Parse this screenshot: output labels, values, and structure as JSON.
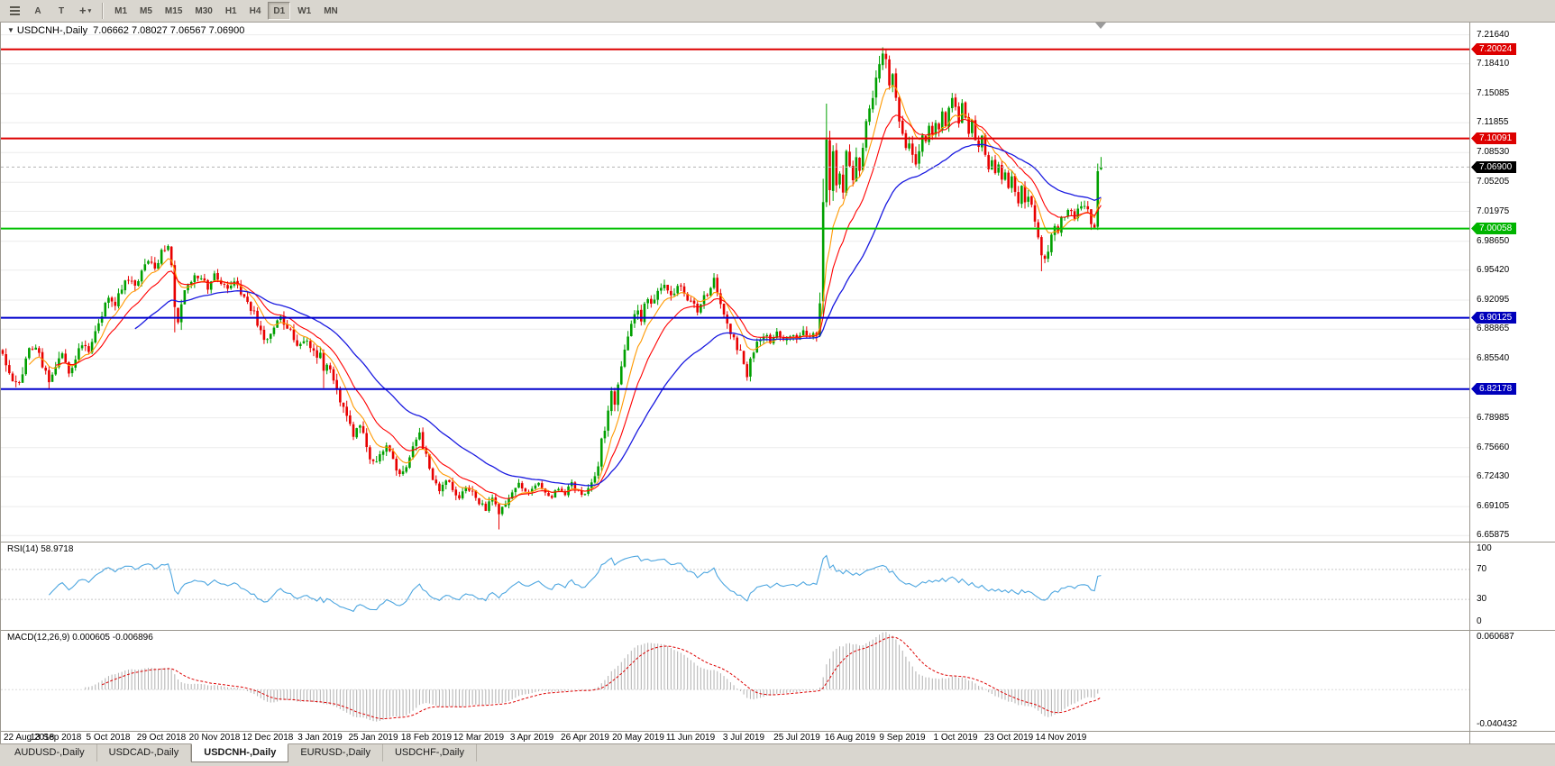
{
  "toolbar": {
    "a_label": "A",
    "t_label": "T",
    "crosshair_glyph": "+",
    "dropdown_glyph": "▾",
    "timeframes": [
      "M1",
      "M5",
      "M15",
      "M30",
      "H1",
      "H4",
      "D1",
      "W1",
      "MN"
    ],
    "active_timeframe": "D1"
  },
  "chart_header": {
    "collapse_icon": "▼",
    "title": "USDCNH-,Daily",
    "ohlc": "7.06662 7.08027 7.06567 7.06900"
  },
  "price_scale": {
    "labels": [
      "7.21640",
      "7.18410",
      "7.15085",
      "7.11855",
      "7.08530",
      "7.05205",
      "7.01975",
      "6.98650",
      "6.95420",
      "6.92095",
      "6.88865",
      "6.85540",
      "6.82215",
      "6.78985",
      "6.75660",
      "6.72430",
      "6.69105",
      "6.65875"
    ]
  },
  "hlines": [
    {
      "price": 7.20024,
      "label": "7.20024",
      "color": "#dd0000",
      "tag_bg": "#dd0000",
      "width": 2,
      "style": "solid"
    },
    {
      "price": 7.10091,
      "label": "7.10091",
      "color": "#dd0000",
      "tag_bg": "#dd0000",
      "width": 2,
      "style": "solid"
    },
    {
      "price": 7.069,
      "label": "7.06900",
      "color": "#b4b4b4",
      "tag_bg": "#000000",
      "width": 1,
      "style": "dotted"
    },
    {
      "price": 7.00058,
      "label": "7.00058",
      "color": "#00c000",
      "tag_bg": "#00b400",
      "width": 2,
      "style": "solid"
    },
    {
      "price": 6.90125,
      "label": "6.90125",
      "color": "#0000cc",
      "tag_bg": "#0000bb",
      "width": 2,
      "style": "solid"
    },
    {
      "price": 6.82178,
      "label": "6.82178",
      "color": "#0000cc",
      "tag_bg": "#0000bb",
      "width": 2,
      "style": "solid"
    }
  ],
  "chart_data": {
    "type": "candlestick",
    "symbol": "USDCNH-",
    "period": "Daily",
    "candle_count": 333,
    "ylim": [
      6.652,
      7.23
    ],
    "colors": {
      "up": "#00a000",
      "down": "#e80000",
      "ma_fast": "#ff9900",
      "ma_mid": "#ff0000",
      "ma_slow": "#1a1ae0"
    },
    "close_waypoints": [
      [
        0,
        6.862
      ],
      [
        2,
        6.845
      ],
      [
        4,
        6.826
      ],
      [
        6,
        6.842
      ],
      [
        8,
        6.866
      ],
      [
        10,
        6.873
      ],
      [
        12,
        6.851
      ],
      [
        14,
        6.834
      ],
      [
        16,
        6.846
      ],
      [
        18,
        6.859
      ],
      [
        20,
        6.843
      ],
      [
        22,
        6.856
      ],
      [
        24,
        6.871
      ],
      [
        26,
        6.86
      ],
      [
        28,
        6.887
      ],
      [
        30,
        6.906
      ],
      [
        32,
        6.922
      ],
      [
        34,
        6.916
      ],
      [
        36,
        6.933
      ],
      [
        38,
        6.945
      ],
      [
        40,
        6.939
      ],
      [
        42,
        6.953
      ],
      [
        44,
        6.963
      ],
      [
        46,
        6.956
      ],
      [
        48,
        6.973
      ],
      [
        50,
        6.979
      ],
      [
        51,
        6.958
      ],
      [
        52,
        6.91
      ],
      [
        53,
        6.895
      ],
      [
        54,
        6.916
      ],
      [
        56,
        6.939
      ],
      [
        58,
        6.951
      ],
      [
        60,
        6.943
      ],
      [
        62,
        6.936
      ],
      [
        64,
        6.949
      ],
      [
        66,
        6.941
      ],
      [
        68,
        6.933
      ],
      [
        70,
        6.941
      ],
      [
        72,
        6.929
      ],
      [
        74,
        6.916
      ],
      [
        76,
        6.906
      ],
      [
        78,
        6.884
      ],
      [
        80,
        6.876
      ],
      [
        82,
        6.889
      ],
      [
        84,
        6.901
      ],
      [
        86,
        6.893
      ],
      [
        88,
        6.879
      ],
      [
        90,
        6.869
      ],
      [
        92,
        6.876
      ],
      [
        94,
        6.863
      ],
      [
        96,
        6.859
      ],
      [
        97,
        6.842
      ],
      [
        98,
        6.853
      ],
      [
        100,
        6.833
      ],
      [
        102,
        6.811
      ],
      [
        104,
        6.789
      ],
      [
        106,
        6.771
      ],
      [
        108,
        6.783
      ],
      [
        110,
        6.757
      ],
      [
        112,
        6.739
      ],
      [
        114,
        6.749
      ],
      [
        116,
        6.761
      ],
      [
        118,
        6.743
      ],
      [
        120,
        6.727
      ],
      [
        122,
        6.739
      ],
      [
        124,
        6.756
      ],
      [
        126,
        6.771
      ],
      [
        128,
        6.746
      ],
      [
        130,
        6.723
      ],
      [
        132,
        6.706
      ],
      [
        134,
        6.719
      ],
      [
        136,
        6.711
      ],
      [
        138,
        6.699
      ],
      [
        140,
        6.713
      ],
      [
        142,
        6.706
      ],
      [
        144,
        6.696
      ],
      [
        146,
        6.689
      ],
      [
        148,
        6.701
      ],
      [
        150,
        6.683
      ],
      [
        152,
        6.696
      ],
      [
        154,
        6.709
      ],
      [
        156,
        6.716
      ],
      [
        158,
        6.705
      ],
      [
        160,
        6.713
      ],
      [
        162,
        6.719
      ],
      [
        164,
        6.709
      ],
      [
        166,
        6.701
      ],
      [
        168,
        6.713
      ],
      [
        170,
        6.706
      ],
      [
        172,
        6.716
      ],
      [
        174,
        6.709
      ],
      [
        176,
        6.703
      ],
      [
        178,
        6.716
      ],
      [
        180,
        6.737
      ],
      [
        181,
        6.763
      ],
      [
        182,
        6.779
      ],
      [
        183,
        6.801
      ],
      [
        184,
        6.819
      ],
      [
        185,
        6.809
      ],
      [
        186,
        6.829
      ],
      [
        187,
        6.846
      ],
      [
        188,
        6.863
      ],
      [
        189,
        6.879
      ],
      [
        190,
        6.891
      ],
      [
        191,
        6.906
      ],
      [
        192,
        6.913
      ],
      [
        193,
        6.901
      ],
      [
        194,
        6.916
      ],
      [
        195,
        6.923
      ],
      [
        196,
        6.916
      ],
      [
        198,
        6.929
      ],
      [
        200,
        6.936
      ],
      [
        202,
        6.923
      ],
      [
        204,
        6.939
      ],
      [
        206,
        6.929
      ],
      [
        208,
        6.919
      ],
      [
        210,
        6.909
      ],
      [
        212,
        6.923
      ],
      [
        214,
        6.936
      ],
      [
        215,
        6.946
      ],
      [
        216,
        6.929
      ],
      [
        218,
        6.906
      ],
      [
        220,
        6.883
      ],
      [
        222,
        6.869
      ],
      [
        224,
        6.853
      ],
      [
        225,
        6.839
      ],
      [
        226,
        6.856
      ],
      [
        228,
        6.873
      ],
      [
        230,
        6.881
      ],
      [
        232,
        6.876
      ],
      [
        234,
        6.883
      ],
      [
        236,
        6.876
      ],
      [
        238,
        6.881
      ],
      [
        240,
        6.879
      ],
      [
        242,
        6.886
      ],
      [
        244,
        6.881
      ],
      [
        246,
        6.889
      ],
      [
        247,
        6.926
      ],
      [
        248,
        7.036
      ],
      [
        249,
        7.106
      ],
      [
        250,
        7.046
      ],
      [
        251,
        7.086
      ],
      [
        252,
        7.043
      ],
      [
        253,
        7.069
      ],
      [
        254,
        7.049
      ],
      [
        255,
        7.083
      ],
      [
        256,
        7.066
      ],
      [
        257,
        7.049
      ],
      [
        258,
        7.076
      ],
      [
        259,
        7.063
      ],
      [
        260,
        7.096
      ],
      [
        261,
        7.116
      ],
      [
        262,
        7.133
      ],
      [
        263,
        7.149
      ],
      [
        264,
        7.163
      ],
      [
        265,
        7.179
      ],
      [
        266,
        7.196
      ],
      [
        267,
        7.186
      ],
      [
        268,
        7.156
      ],
      [
        269,
        7.169
      ],
      [
        270,
        7.143
      ],
      [
        271,
        7.119
      ],
      [
        272,
        7.109
      ],
      [
        273,
        7.086
      ],
      [
        274,
        7.099
      ],
      [
        275,
        7.083
      ],
      [
        276,
        7.069
      ],
      [
        277,
        7.089
      ],
      [
        278,
        7.103
      ],
      [
        279,
        7.096
      ],
      [
        280,
        7.113
      ],
      [
        281,
        7.106
      ],
      [
        282,
        7.119
      ],
      [
        283,
        7.111
      ],
      [
        284,
        7.126
      ],
      [
        285,
        7.119
      ],
      [
        286,
        7.136
      ],
      [
        287,
        7.149
      ],
      [
        288,
        7.136
      ],
      [
        289,
        7.121
      ],
      [
        290,
        7.136
      ],
      [
        291,
        7.126
      ],
      [
        292,
        7.109
      ],
      [
        293,
        7.119
      ],
      [
        294,
        7.099
      ],
      [
        295,
        7.089
      ],
      [
        296,
        7.103
      ],
      [
        297,
        7.086
      ],
      [
        298,
        7.069
      ],
      [
        299,
        7.079
      ],
      [
        300,
        7.063
      ],
      [
        301,
        7.073
      ],
      [
        302,
        7.056
      ],
      [
        303,
        7.066
      ],
      [
        304,
        7.049
      ],
      [
        305,
        7.059
      ],
      [
        306,
        7.043
      ],
      [
        307,
        7.033
      ],
      [
        308,
        7.046
      ],
      [
        309,
        7.029
      ],
      [
        310,
        7.039
      ],
      [
        311,
        7.023
      ],
      [
        312,
        7.006
      ],
      [
        313,
        6.989
      ],
      [
        314,
        6.973
      ],
      [
        315,
        6.963
      ],
      [
        316,
        6.979
      ],
      [
        317,
        6.993
      ],
      [
        318,
        7.006
      ],
      [
        319,
        6.999
      ],
      [
        320,
        7.013
      ],
      [
        322,
        7.02
      ],
      [
        324,
        7.015
      ],
      [
        326,
        7.024
      ],
      [
        328,
        7.02
      ],
      [
        329,
        7.008
      ],
      [
        330,
        7.003
      ],
      [
        331,
        7.064
      ],
      [
        332,
        7.067
      ]
    ],
    "vol_waypoints": [
      [
        0,
        0.013
      ],
      [
        16,
        0.011
      ],
      [
        32,
        0.009
      ],
      [
        48,
        0.01
      ],
      [
        53,
        0.013
      ],
      [
        60,
        0.008
      ],
      [
        80,
        0.008
      ],
      [
        96,
        0.01
      ],
      [
        112,
        0.01
      ],
      [
        128,
        0.009
      ],
      [
        144,
        0.008
      ],
      [
        160,
        0.006
      ],
      [
        176,
        0.006
      ],
      [
        184,
        0.012
      ],
      [
        192,
        0.01
      ],
      [
        208,
        0.008
      ],
      [
        224,
        0.009
      ],
      [
        244,
        0.007
      ],
      [
        248,
        0.03
      ],
      [
        252,
        0.022
      ],
      [
        258,
        0.016
      ],
      [
        266,
        0.015
      ],
      [
        272,
        0.014
      ],
      [
        288,
        0.011
      ],
      [
        304,
        0.009
      ],
      [
        314,
        0.012
      ],
      [
        324,
        0.008
      ],
      [
        332,
        0.01
      ]
    ],
    "overrides": {
      "52": {
        "l": 6.885
      },
      "97": {
        "l": 6.823
      },
      "150": {
        "l": 6.6655
      },
      "248": {
        "l": 6.905,
        "h": 7.056
      },
      "249": {
        "h": 7.1397
      },
      "266": {
        "h": 7.2024
      },
      "314": {
        "l": 6.953
      },
      "331": {
        "l": 6.999,
        "h": 7.073
      },
      "332": {
        "o": 7.06662,
        "h": 7.08027,
        "l": 7.06567,
        "c": 7.069
      }
    }
  },
  "rsi": {
    "name": "RSI(14)",
    "value": "58.9718",
    "levels": [
      "100",
      "70",
      "30",
      "0"
    ],
    "color": "#4da6e0"
  },
  "macd": {
    "name": "MACD(12,26,9)",
    "value_main": "0.000605",
    "value_signal": "-0.006896",
    "scale_top": "0.060687",
    "scale_bottom": "-0.040432",
    "hist_color": "#b0b0b0",
    "signal_color": "#dd0000"
  },
  "date_axis": {
    "labels": [
      "22 Aug 2018",
      "13 Sep 2018",
      "5 Oct 2018",
      "29 Oct 2018",
      "20 Nov 2018",
      "12 Dec 2018",
      "3 Jan 2019",
      "25 Jan 2019",
      "18 Feb 2019",
      "12 Mar 2019",
      "3 Apr 2019",
      "26 Apr 2019",
      "20 May 2019",
      "11 Jun 2019",
      "3 Jul 2019",
      "25 Jul 2019",
      "16 Aug 2019",
      "9 Sep 2019",
      "1 Oct 2019",
      "23 Oct 2019",
      "14 Nov 2019"
    ],
    "step_bars": 16
  },
  "tabs": {
    "items": [
      "AUDUSD-,Daily",
      "USDCAD-,Daily",
      "USDCNH-,Daily",
      "EURUSD-,Daily",
      "USDCHF-,Daily"
    ],
    "active_index": 2
  }
}
